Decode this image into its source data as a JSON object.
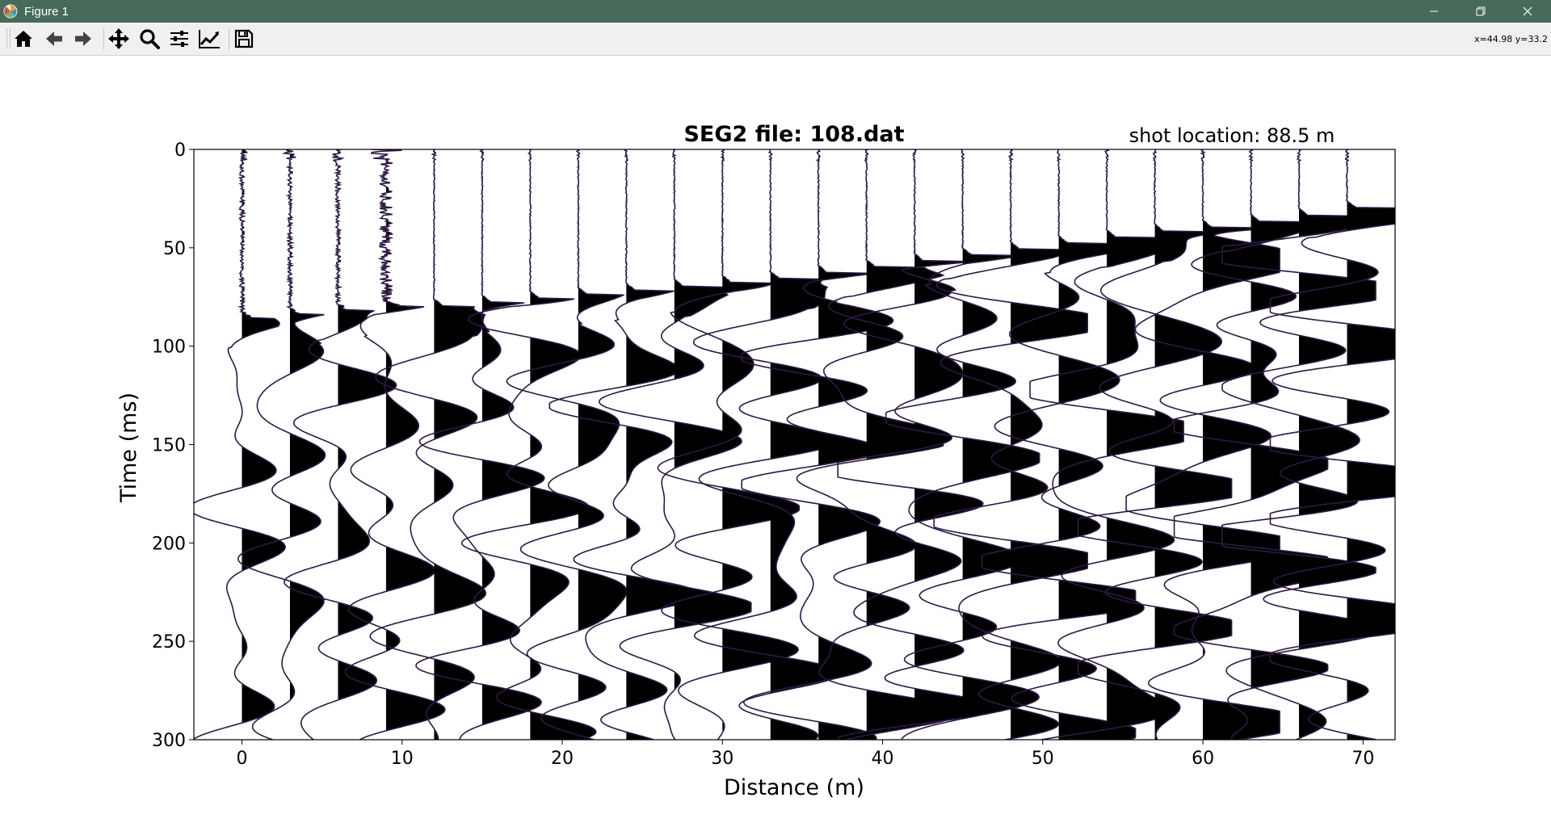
{
  "window": {
    "title": "Figure 1",
    "controls": [
      "minimize",
      "restore",
      "close"
    ]
  },
  "toolbar": {
    "buttons": [
      {
        "name": "home-button",
        "icon": "home-icon"
      },
      {
        "name": "back-button",
        "icon": "arrow-left-icon"
      },
      {
        "name": "forward-button",
        "icon": "arrow-right-icon"
      },
      {
        "name": "pan-button",
        "icon": "move-icon"
      },
      {
        "name": "zoom-button",
        "icon": "magnifier-icon"
      },
      {
        "name": "subplots-button",
        "icon": "sliders-icon"
      },
      {
        "name": "edit-axes-button",
        "icon": "line-chart-icon"
      },
      {
        "name": "save-button",
        "icon": "floppy-disk-icon"
      }
    ],
    "coords_text": "x=44.98 y=33.2"
  },
  "chart_data": {
    "type": "line",
    "title": "SEG2 file: 108.dat",
    "annotation": "shot location: 88.5 m",
    "xlabel": "Distance (m)",
    "ylabel": "Time (ms)",
    "xlim": [
      -3,
      72
    ],
    "ylim": [
      300,
      0
    ],
    "y_inverted": true,
    "xticks": [
      0,
      10,
      20,
      30,
      40,
      50,
      60,
      70
    ],
    "yticks": [
      0,
      50,
      100,
      150,
      200,
      250,
      300
    ],
    "trace_positions": [
      0,
      3,
      6,
      9,
      12,
      15,
      18,
      21,
      24,
      27,
      30,
      33,
      36,
      39,
      42,
      45,
      48,
      51,
      54,
      57,
      60,
      63,
      66,
      69
    ],
    "first_arrival_ms": [
      86,
      84,
      82,
      80,
      80,
      78,
      76,
      74,
      72,
      70,
      68,
      66,
      63,
      60,
      57,
      54,
      51,
      48,
      45,
      42,
      40,
      37,
      34,
      30
    ],
    "fill": "positive-black",
    "line_color": "#2d1a44"
  }
}
